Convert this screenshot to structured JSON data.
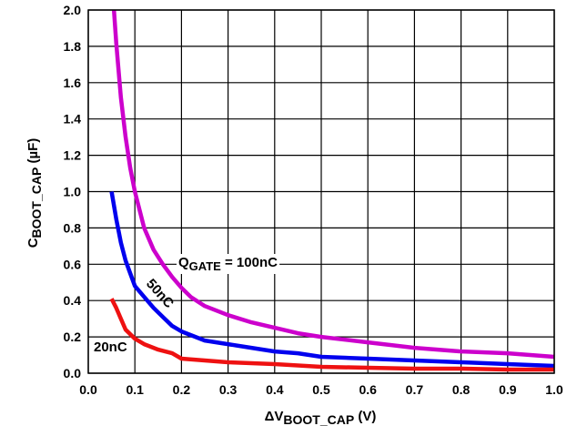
{
  "chart_data": {
    "type": "line",
    "title": "",
    "xlabel": {
      "prefix": "ΔV",
      "sub": "BOOT_CAP",
      "suffix": " (V)"
    },
    "ylabel": {
      "prefix": "C",
      "sub": "BOOT_CAP",
      "suffix": " (µF)"
    },
    "xlim": [
      0.0,
      1.0
    ],
    "ylim": [
      0.0,
      2.0
    ],
    "xticks": [
      0.0,
      0.1,
      0.2,
      0.3,
      0.4,
      0.5,
      0.6,
      0.7,
      0.8,
      0.9,
      1.0
    ],
    "yticks": [
      0.0,
      0.2,
      0.4,
      0.6,
      0.8,
      1.0,
      1.2,
      1.4,
      1.6,
      1.8,
      2.0
    ],
    "xtick_labels": [
      "0.0",
      "0.1",
      "0.2",
      "0.3",
      "0.4",
      "0.5",
      "0.6",
      "0.7",
      "0.8",
      "0.9",
      "1.0"
    ],
    "ytick_labels": [
      "0.0",
      "0.2",
      "0.4",
      "0.6",
      "0.8",
      "1.0",
      "1.2",
      "1.4",
      "1.6",
      "1.8",
      "2.0"
    ],
    "grid": true,
    "series": [
      {
        "name": "100nC",
        "label_prefix": "Q",
        "label_sub": "GATE",
        "label_suffix": " = 100nC",
        "color": "#cc00cc",
        "x": [
          0.055,
          0.06,
          0.07,
          0.08,
          0.09,
          0.1,
          0.12,
          0.14,
          0.16,
          0.18,
          0.2,
          0.22,
          0.25,
          0.3,
          0.35,
          0.4,
          0.45,
          0.5,
          0.6,
          0.7,
          0.8,
          0.9,
          1.0
        ],
        "y": [
          2.0,
          1.82,
          1.52,
          1.3,
          1.13,
          1.0,
          0.8,
          0.68,
          0.6,
          0.53,
          0.47,
          0.42,
          0.37,
          0.32,
          0.28,
          0.25,
          0.22,
          0.2,
          0.17,
          0.14,
          0.12,
          0.11,
          0.09
        ]
      },
      {
        "name": "50nC",
        "label_prefix": "",
        "label_sub": "",
        "label_suffix": "50nC",
        "color": "#0000ee",
        "x": [
          0.05,
          0.06,
          0.07,
          0.08,
          0.09,
          0.1,
          0.12,
          0.14,
          0.16,
          0.18,
          0.2,
          0.25,
          0.3,
          0.35,
          0.4,
          0.45,
          0.5,
          0.6,
          0.7,
          0.8,
          0.9,
          1.0
        ],
        "y": [
          1.0,
          0.85,
          0.72,
          0.62,
          0.55,
          0.48,
          0.42,
          0.36,
          0.31,
          0.26,
          0.23,
          0.18,
          0.16,
          0.14,
          0.12,
          0.11,
          0.09,
          0.08,
          0.07,
          0.06,
          0.05,
          0.04
        ]
      },
      {
        "name": "20nC",
        "label_prefix": "",
        "label_sub": "",
        "label_suffix": "20nC",
        "color": "#ee1111",
        "x": [
          0.05,
          0.06,
          0.07,
          0.08,
          0.1,
          0.12,
          0.15,
          0.18,
          0.2,
          0.25,
          0.3,
          0.4,
          0.5,
          0.6,
          0.7,
          0.8,
          0.9,
          1.0
        ],
        "y": [
          0.41,
          0.36,
          0.3,
          0.24,
          0.19,
          0.16,
          0.13,
          0.11,
          0.08,
          0.07,
          0.06,
          0.05,
          0.035,
          0.03,
          0.025,
          0.025,
          0.02,
          0.02
        ]
      }
    ]
  }
}
